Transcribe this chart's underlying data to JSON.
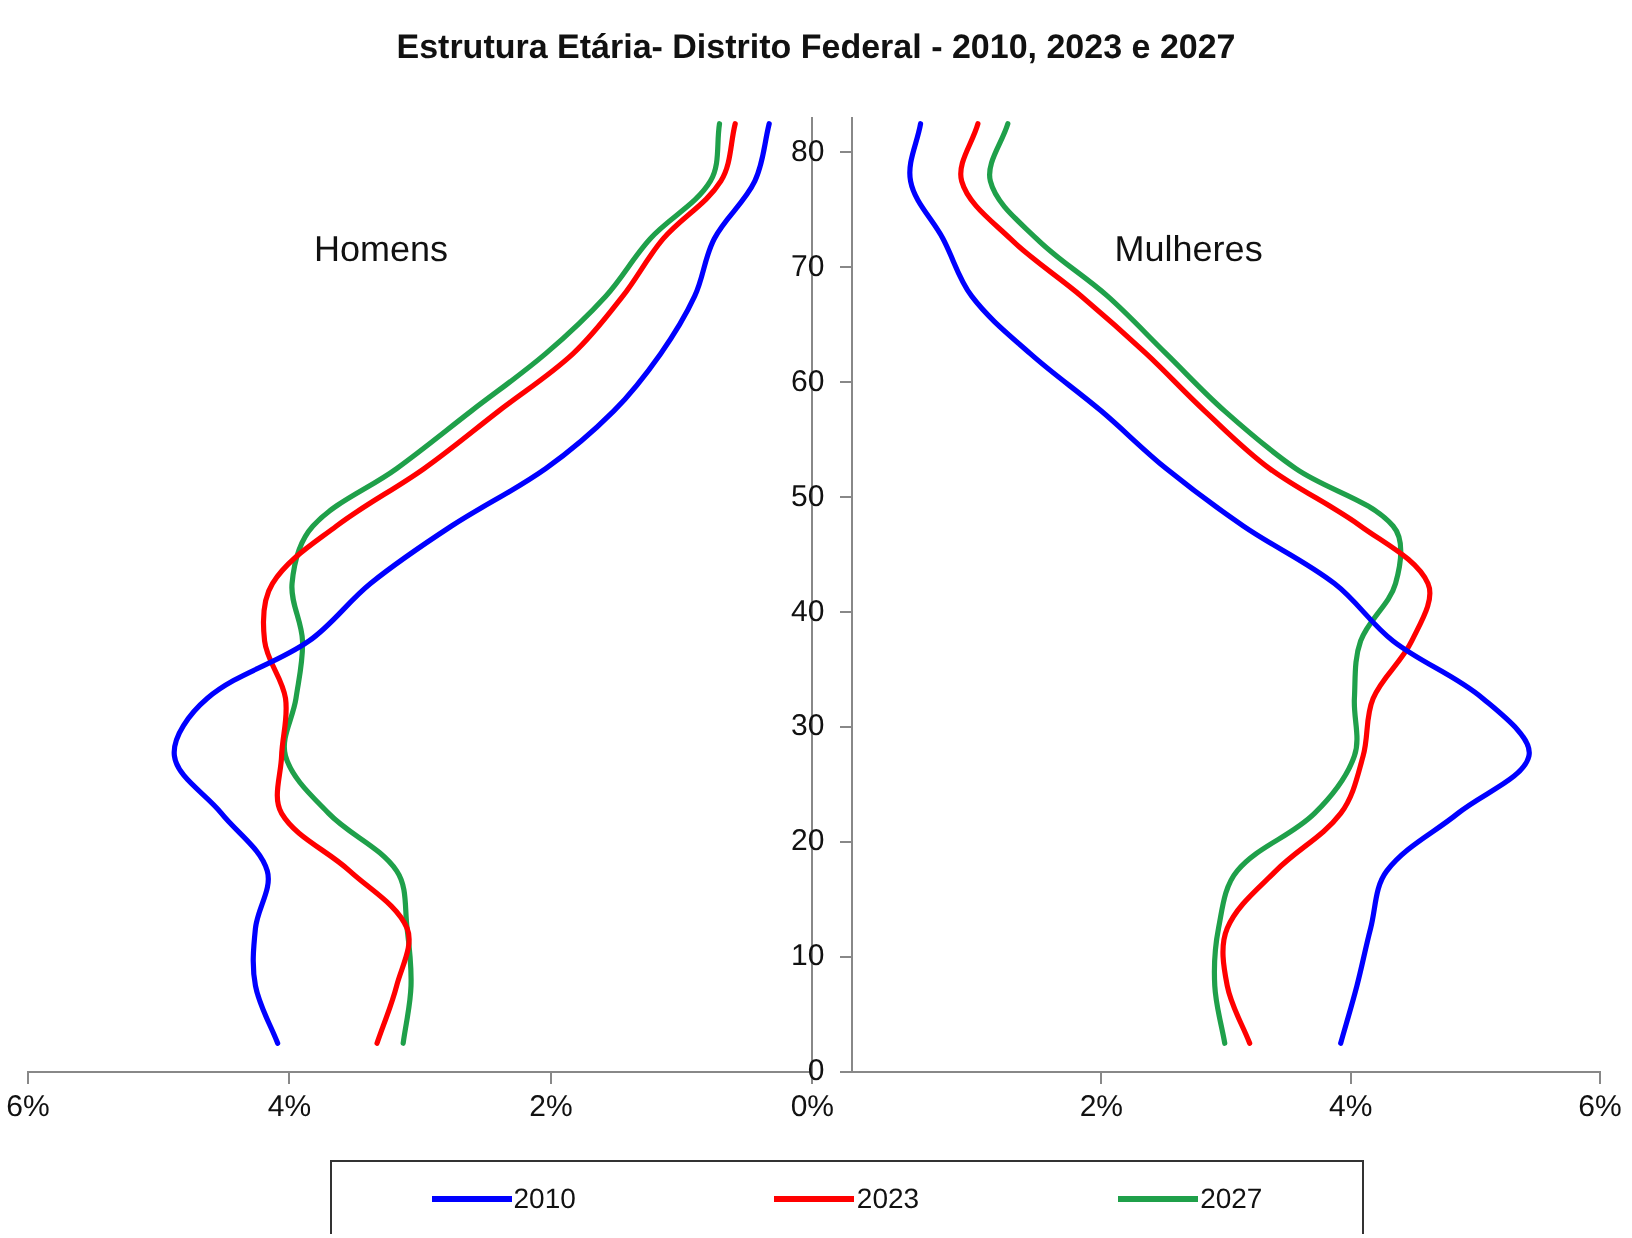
{
  "chart_data": [
    {
      "type": "line",
      "title": "Estrutura Etária- Distrito Federal - 2010, 2023 e 2027",
      "annotations": [
        "Homens"
      ],
      "xlim": [
        6,
        0
      ],
      "xticks": [
        {
          "value": 6,
          "label": "6%"
        },
        {
          "value": 4,
          "label": "4%"
        },
        {
          "value": 2,
          "label": "2%"
        },
        {
          "value": 0,
          "label": "0%"
        }
      ],
      "ylim": [
        0,
        83
      ],
      "yticks": [
        0,
        10,
        20,
        30,
        40,
        50,
        60,
        70,
        80
      ],
      "grid": false,
      "legend": "bottom",
      "marker": "none",
      "line_style": "solid",
      "series": [
        {
          "name": "2010",
          "color": "#0000ff",
          "x": [
            4.09,
            4.26,
            4.26,
            4.17,
            4.52,
            4.88,
            4.63,
            3.85,
            3.38,
            2.76,
            2.04,
            1.52,
            1.16,
            0.9,
            0.75,
            0.44,
            0.33
          ],
          "values": [
            2.5,
            7.5,
            12.5,
            17.5,
            22.5,
            27.5,
            32.5,
            37.5,
            42.5,
            47.5,
            52.5,
            57.5,
            62.5,
            67.5,
            72.5,
            77.5,
            82.5
          ]
        },
        {
          "name": "2023",
          "color": "#ff0000",
          "x": [
            3.33,
            3.18,
            3.1,
            3.54,
            4.06,
            4.06,
            4.03,
            4.19,
            4.13,
            3.64,
            2.97,
            2.4,
            1.83,
            1.45,
            1.14,
            0.7,
            0.59
          ],
          "values": [
            2.5,
            7.5,
            12.5,
            17.5,
            22.5,
            27.5,
            32.5,
            37.5,
            42.5,
            47.5,
            52.5,
            57.5,
            62.5,
            67.5,
            72.5,
            77.5,
            82.5
          ]
        },
        {
          "name": "2027",
          "color": "#1fa04a",
          "x": [
            3.13,
            3.07,
            3.1,
            3.18,
            3.7,
            4.03,
            3.95,
            3.9,
            3.98,
            3.82,
            3.18,
            2.61,
            2.04,
            1.58,
            1.24,
            0.78,
            0.71
          ],
          "values": [
            2.5,
            7.5,
            12.5,
            17.5,
            22.5,
            27.5,
            32.5,
            37.5,
            42.5,
            47.5,
            52.5,
            57.5,
            62.5,
            67.5,
            72.5,
            77.5,
            82.5
          ]
        }
      ]
    },
    {
      "type": "line",
      "annotations": [
        "Mulheres"
      ],
      "xlim": [
        0,
        6
      ],
      "xticks": [
        {
          "value": 2,
          "label": "2%"
        },
        {
          "value": 4,
          "label": "4%"
        },
        {
          "value": 6,
          "label": "6%"
        }
      ],
      "ylim": [
        0,
        83
      ],
      "yticks": [
        0,
        10,
        20,
        30,
        40,
        50,
        60,
        70,
        80
      ],
      "tick_labels": "x",
      "grid": false,
      "marker": "none",
      "line_style": "solid",
      "series": [
        {
          "color": "#0000ff",
          "x": [
            3.92,
            4.05,
            4.16,
            4.29,
            4.86,
            5.43,
            5.06,
            4.34,
            3.87,
            3.14,
            2.52,
            2.0,
            1.43,
            0.96,
            0.73,
            0.47,
            0.55
          ],
          "values": [
            2.5,
            7.5,
            12.5,
            17.5,
            22.5,
            27.5,
            32.5,
            37.5,
            42.5,
            47.5,
            52.5,
            57.5,
            62.5,
            67.5,
            72.5,
            77.5,
            82.5
          ]
        },
        {
          "color": "#ff0000",
          "x": [
            3.19,
            3.01,
            3.01,
            3.4,
            3.92,
            4.1,
            4.18,
            4.49,
            4.62,
            4.08,
            3.35,
            2.83,
            2.36,
            1.84,
            1.27,
            0.88,
            1.01
          ],
          "values": [
            2.5,
            7.5,
            12.5,
            17.5,
            22.5,
            27.5,
            32.5,
            37.5,
            42.5,
            47.5,
            52.5,
            57.5,
            62.5,
            67.5,
            72.5,
            77.5,
            82.5
          ]
        },
        {
          "color": "#1fa04a",
          "x": [
            2.99,
            2.91,
            2.94,
            3.09,
            3.71,
            4.03,
            4.03,
            4.08,
            4.36,
            4.34,
            3.56,
            2.99,
            2.52,
            2.05,
            1.48,
            1.11,
            1.25
          ],
          "values": [
            2.5,
            7.5,
            12.5,
            17.5,
            22.5,
            27.5,
            32.5,
            37.5,
            42.5,
            47.5,
            52.5,
            57.5,
            62.5,
            67.5,
            72.5,
            77.5,
            82.5
          ]
        }
      ]
    }
  ]
}
